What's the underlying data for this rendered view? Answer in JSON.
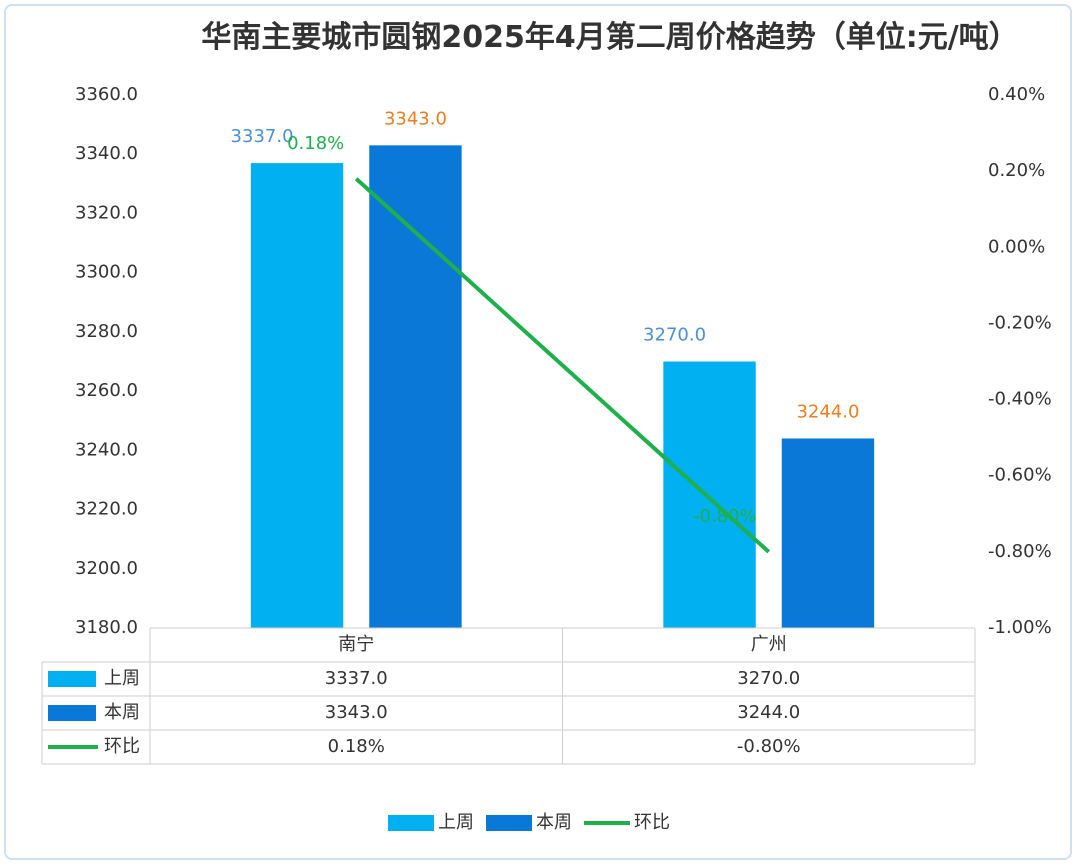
{
  "chart_data": {
    "type": "bar",
    "title": "华南主要城市圆钢2025年4月第二周价格趋势（单位:元/吨）",
    "categories": [
      "南宁",
      "广州"
    ],
    "series": [
      {
        "name": "上周",
        "color": "#00b0f0",
        "label_color": "#4a90d9",
        "values": [
          3337.0,
          3270.0
        ],
        "value_labels": [
          "3337.0",
          "3270.0"
        ]
      },
      {
        "name": "本周",
        "color": "#0a78d6",
        "label_color": "#ee7d1f",
        "values": [
          3343.0,
          3244.0
        ],
        "value_labels": [
          "3343.0",
          "3244.0"
        ]
      },
      {
        "name": "环比",
        "type": "line",
        "axis": "y2",
        "color": "#1db04b",
        "label_color": "#1db04b",
        "values": [
          0.18,
          -0.8
        ],
        "value_labels": [
          "0.18%",
          "-0.80%"
        ]
      }
    ],
    "ylim": [
      3180,
      3360
    ],
    "yticks": [
      {
        "value": 3180,
        "label": "3180.0"
      },
      {
        "value": 3200,
        "label": "3200.0"
      },
      {
        "value": 3220,
        "label": "3220.0"
      },
      {
        "value": 3240,
        "label": "3240.0"
      },
      {
        "value": 3260,
        "label": "3260.0"
      },
      {
        "value": 3280,
        "label": "3280.0"
      },
      {
        "value": 3300,
        "label": "3300.0"
      },
      {
        "value": 3320,
        "label": "3320.0"
      },
      {
        "value": 3340,
        "label": "3340.0"
      },
      {
        "value": 3360,
        "label": "3360.0"
      }
    ],
    "y2lim": [
      -1.0,
      0.4
    ],
    "y2ticks": [
      {
        "value": -1.0,
        "label": "-1.00%"
      },
      {
        "value": -0.8,
        "label": "-0.80%"
      },
      {
        "value": -0.6,
        "label": "-0.60%"
      },
      {
        "value": -0.4,
        "label": "-0.40%"
      },
      {
        "value": -0.2,
        "label": "-0.20%"
      },
      {
        "value": 0,
        "label": "0.00%"
      },
      {
        "value": 0.2,
        "label": "0.20%"
      },
      {
        "value": 0.4,
        "label": "0.40%"
      }
    ],
    "grid": false,
    "data_table": true,
    "legend": "bottom"
  }
}
